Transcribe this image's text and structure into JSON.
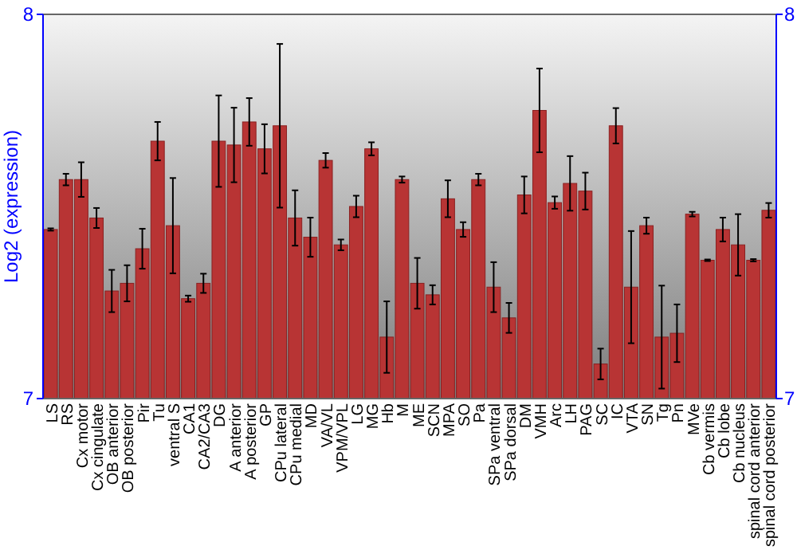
{
  "chart_data": {
    "type": "bar",
    "ylabel": "Log2 (expression)",
    "categories": [
      "LS",
      "RS",
      "Cx motor",
      "Cx cingulate",
      "OB anterior",
      "OB posterior",
      "Pir",
      "Tu",
      "ventral S",
      "CA1",
      "CA2/CA3",
      "DG",
      "A anterior",
      "A posterior",
      "GP",
      "CPu lateral",
      "CPu medial",
      "MD",
      "VA/VL",
      "VPM/VPL",
      "LG",
      "MG",
      "Hb",
      "M",
      "ME",
      "SCN",
      "MPA",
      "SO",
      "Pa",
      "SPa ventral",
      "SPa dorsal",
      "DM",
      "VMH",
      "Arc",
      "LH",
      "PAG",
      "SC",
      "IC",
      "VTA",
      "SN",
      "Tg",
      "Pn",
      "MVe",
      "Cb vermis",
      "Cb lobe",
      "Cb nucleus",
      "spinal cord anterior",
      "spinal cord posterior"
    ],
    "values": [
      7.44,
      7.57,
      7.57,
      7.47,
      7.28,
      7.3,
      7.39,
      7.67,
      7.45,
      7.26,
      7.3,
      7.67,
      7.66,
      7.72,
      7.65,
      7.71,
      7.47,
      7.42,
      7.62,
      7.4,
      7.5,
      7.65,
      7.16,
      7.57,
      7.3,
      7.27,
      7.52,
      7.44,
      7.57,
      7.29,
      7.21,
      7.53,
      7.75,
      7.51,
      7.56,
      7.54,
      7.09,
      7.71,
      7.29,
      7.45,
      7.16,
      7.17,
      7.48,
      7.36,
      7.44,
      7.4,
      7.36,
      7.49
    ],
    "errors": [
      0.003,
      0.015,
      0.045,
      0.026,
      0.055,
      0.047,
      0.052,
      0.05,
      0.124,
      0.008,
      0.025,
      0.119,
      0.097,
      0.062,
      0.064,
      0.213,
      0.072,
      0.051,
      0.019,
      0.014,
      0.028,
      0.017,
      0.093,
      0.008,
      0.066,
      0.025,
      0.048,
      0.019,
      0.015,
      0.065,
      0.039,
      0.048,
      0.109,
      0.016,
      0.071,
      0.048,
      0.04,
      0.046,
      0.146,
      0.021,
      0.134,
      0.075,
      0.006,
      0.002,
      0.031,
      0.08,
      0.003,
      0.019
    ],
    "color": "#b83434",
    "ylim": [
      7,
      8
    ],
    "yticks": [
      7,
      8
    ],
    "y2lim": [
      7,
      8
    ],
    "y2ticks": [
      7,
      8
    ]
  }
}
